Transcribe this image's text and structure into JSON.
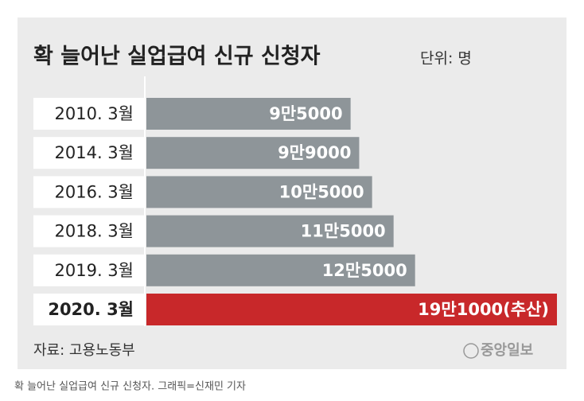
{
  "chart_data": {
    "type": "bar",
    "orientation": "horizontal",
    "title": "확 늘어난 실업급여 신규 신청자",
    "unit": "단위: 명",
    "categories": [
      "2010. 3월",
      "2014. 3월",
      "2016. 3월",
      "2018. 3월",
      "2019. 3월",
      "2020. 3월"
    ],
    "values": [
      95000,
      99000,
      105000,
      115000,
      125000,
      191000
    ],
    "value_labels": [
      "9만5000",
      "9만9000",
      "10만5000",
      "11만5000",
      "12만5000",
      "19만1000(추산)"
    ],
    "colors": [
      "#8e9599",
      "#8e9599",
      "#8e9599",
      "#8e9599",
      "#8e9599",
      "#c8282a"
    ],
    "source": "자료: 고용노동부",
    "logo": "중앙일보"
  },
  "caption": "확 늘어난 실업급여 신규 신청자. 그래픽=신재민 기자"
}
